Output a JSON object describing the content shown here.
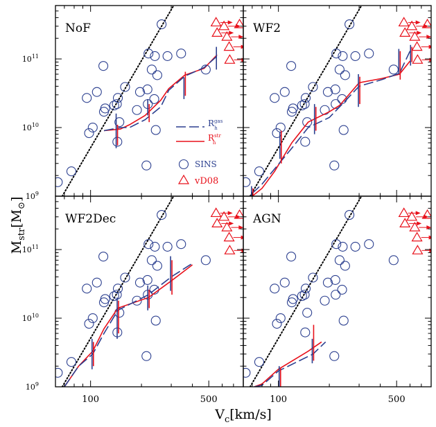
{
  "figure": {
    "ylabel_main": "M",
    "ylabel_sub": "str",
    "ylabel_unit": "[M",
    "ylabel_unit_sub": "⊙",
    "ylabel_close": "]",
    "xlabel_main": "V",
    "xlabel_sub": "c",
    "xlabel_unit": "[km/s]",
    "xticks": [
      {
        "value": 100,
        "label": "100"
      },
      {
        "value": 500,
        "label": "500"
      }
    ],
    "yticks": [
      {
        "exp": 9,
        "label": "10",
        "sup": "9"
      },
      {
        "exp": 10,
        "label": "10",
        "sup": "10"
      },
      {
        "exp": 11,
        "label": "10",
        "sup": "11"
      }
    ],
    "legend": {
      "gas_label": "R",
      "gas_sub": "h",
      "gas_sup": "gas",
      "str_label": "R",
      "str_sub": "h",
      "str_sup": "str",
      "sins_label": "SINS",
      "vd08_label": "vD08"
    },
    "colors": {
      "blue": "#2b3f8f",
      "red": "#e8101a",
      "black": "#000000"
    }
  },
  "chart_data": [
    {
      "type": "scatter",
      "panel_label": "NoF",
      "xscale": "log",
      "yscale": "log",
      "xlim": [
        62,
        800
      ],
      "ylim": [
        1000000000.0,
        600000000000.0
      ],
      "sins": [
        [
          64,
          1600000000.0
        ],
        [
          77,
          2300000000.0
        ],
        [
          95,
          27000000000.0
        ],
        [
          98,
          8300000000.0
        ],
        [
          103,
          10000000000.0
        ],
        [
          109,
          33000000000.0
        ],
        [
          119,
          79000000000.0
        ],
        [
          120,
          17000000000.0
        ],
        [
          122,
          19000000000.0
        ],
        [
          138,
          21000000000.0
        ],
        [
          143,
          22000000000.0
        ],
        [
          144,
          6200000000.0
        ],
        [
          145,
          27000000000.0
        ],
        [
          148,
          12000000000.0
        ],
        [
          160,
          39000000000.0
        ],
        [
          188,
          18000000000.0
        ],
        [
          196,
          33000000000.0
        ],
        [
          214,
          2800000000.0
        ],
        [
          217,
          36000000000.0
        ],
        [
          218,
          22000000000.0
        ],
        [
          220,
          120000000000.0
        ],
        [
          230,
          70000000000.0
        ],
        [
          238,
          26000000000.0
        ],
        [
          240,
          110000000000.0
        ],
        [
          243,
          9200000000.0
        ],
        [
          248,
          58000000000.0
        ],
        [
          263,
          320000000000.0
        ],
        [
          285,
          110000000000.0
        ],
        [
          343,
          120000000000.0
        ],
        [
          480,
          70000000000.0
        ]
      ],
      "vd08": [
        [
          552,
          340000000000.0
        ],
        [
          560,
          240000000000.0
        ],
        [
          615,
          300000000000.0
        ],
        [
          640,
          210000000000.0
        ],
        [
          660,
          150000000000.0
        ],
        [
          665,
          97000000000.0
        ],
        [
          760,
          320000000000.0
        ]
      ],
      "gas_curve": [
        [
          120,
          9000000000.0
        ],
        [
          150,
          10000000000.0
        ],
        [
          170,
          10000000000.0
        ],
        [
          210,
          13000000000.0
        ],
        [
          260,
          20000000000.0
        ],
        [
          290,
          35000000000.0
        ],
        [
          360,
          56000000000.0
        ],
        [
          470,
          75000000000.0
        ],
        [
          560,
          110000000000.0
        ]
      ],
      "str_curve": [
        [
          120,
          9000000000.0
        ],
        [
          150,
          9500000000.0
        ],
        [
          170,
          11000000000.0
        ],
        [
          210,
          15000000000.0
        ],
        [
          260,
          25000000000.0
        ],
        [
          290,
          37000000000.0
        ],
        [
          360,
          58000000000.0
        ],
        [
          470,
          73000000000.0
        ],
        [
          560,
          115000000000.0
        ]
      ],
      "gas_errbars": [
        [
          143,
          5000000000.0,
          16000000000.0
        ],
        [
          220,
          15000000000.0,
          26000000000.0
        ],
        [
          360,
          26000000000.0,
          54000000000.0
        ],
        [
          560,
          70000000000.0,
          150000000000.0
        ]
      ],
      "str_errbars": [
        [
          143,
          5500000000.0,
          11000000000.0
        ],
        [
          220,
          12000000000.0,
          22000000000.0
        ],
        [
          360,
          29000000000.0,
          65000000000.0
        ]
      ]
    },
    {
      "type": "scatter",
      "panel_label": "WF2",
      "xscale": "log",
      "yscale": "log",
      "xlim": [
        62,
        800
      ],
      "ylim": [
        1000000000.0,
        600000000000.0
      ],
      "sins": [
        [
          64,
          1600000000.0
        ],
        [
          77,
          2300000000.0
        ],
        [
          95,
          27000000000.0
        ],
        [
          98,
          8300000000.0
        ],
        [
          103,
          10000000000.0
        ],
        [
          109,
          33000000000.0
        ],
        [
          119,
          79000000000.0
        ],
        [
          120,
          17000000000.0
        ],
        [
          122,
          19000000000.0
        ],
        [
          138,
          21000000000.0
        ],
        [
          143,
          22000000000.0
        ],
        [
          144,
          6200000000.0
        ],
        [
          145,
          27000000000.0
        ],
        [
          148,
          12000000000.0
        ],
        [
          160,
          39000000000.0
        ],
        [
          188,
          18000000000.0
        ],
        [
          196,
          33000000000.0
        ],
        [
          214,
          2800000000.0
        ],
        [
          217,
          36000000000.0
        ],
        [
          218,
          22000000000.0
        ],
        [
          220,
          120000000000.0
        ],
        [
          230,
          70000000000.0
        ],
        [
          238,
          26000000000.0
        ],
        [
          240,
          110000000000.0
        ],
        [
          243,
          9200000000.0
        ],
        [
          248,
          58000000000.0
        ],
        [
          263,
          320000000000.0
        ],
        [
          285,
          110000000000.0
        ],
        [
          343,
          120000000000.0
        ],
        [
          480,
          70000000000.0
        ]
      ],
      "vd08": [
        [
          552,
          340000000000.0
        ],
        [
          560,
          240000000000.0
        ],
        [
          615,
          300000000000.0
        ],
        [
          640,
          210000000000.0
        ],
        [
          660,
          150000000000.0
        ],
        [
          665,
          97000000000.0
        ],
        [
          760,
          320000000000.0
        ]
      ],
      "gas_curve": [
        [
          70,
          1100000000.0
        ],
        [
          80,
          1500000000.0
        ],
        [
          95,
          2500000000.0
        ],
        [
          120,
          5000000000.0
        ],
        [
          150,
          10000000000.0
        ],
        [
          200,
          14000000000.0
        ],
        [
          230,
          20000000000.0
        ],
        [
          300,
          40000000000.0
        ],
        [
          410,
          50000000000.0
        ],
        [
          520,
          62000000000.0
        ],
        [
          600,
          130000000000.0
        ]
      ],
      "str_curve": [
        [
          70,
          1000000000.0
        ],
        [
          80,
          1300000000.0
        ],
        [
          95,
          2300000000.0
        ],
        [
          120,
          6000000000.0
        ],
        [
          150,
          12000000000.0
        ],
        [
          200,
          17000000000.0
        ],
        [
          230,
          21000000000.0
        ],
        [
          300,
          45000000000.0
        ],
        [
          410,
          52000000000.0
        ],
        [
          520,
          60000000000.0
        ],
        [
          600,
          93000000000.0
        ]
      ],
      "gas_errbars": [
        [
          70,
          600000000.0,
          1400000000.0
        ],
        [
          103,
          3500000000.0,
          8500000000.0
        ],
        [
          165,
          8000000000.0,
          22000000000.0
        ],
        [
          300,
          20000000000.0,
          60000000000.0
        ],
        [
          520,
          60000000000.0,
          140000000000.0
        ],
        [
          610,
          80000000000.0,
          160000000000.0
        ]
      ],
      "str_errbars": [
        [
          70,
          700000000.0,
          1300000000.0
        ],
        [
          103,
          3000000000.0,
          9000000000.0
        ],
        [
          165,
          9000000000.0,
          20000000000.0
        ],
        [
          300,
          22000000000.0,
          55000000000.0
        ],
        [
          520,
          50000000000.0,
          130000000000.0
        ],
        [
          610,
          90000000000.0,
          150000000000.0
        ]
      ]
    },
    {
      "type": "scatter",
      "panel_label": "WF2Dec",
      "xscale": "log",
      "yscale": "log",
      "xlim": [
        62,
        800
      ],
      "ylim": [
        1000000000.0,
        600000000000.0
      ],
      "sins": [
        [
          64,
          1600000000.0
        ],
        [
          77,
          2300000000.0
        ],
        [
          95,
          27000000000.0
        ],
        [
          98,
          8300000000.0
        ],
        [
          103,
          10000000000.0
        ],
        [
          109,
          33000000000.0
        ],
        [
          119,
          79000000000.0
        ],
        [
          120,
          17000000000.0
        ],
        [
          122,
          19000000000.0
        ],
        [
          138,
          21000000000.0
        ],
        [
          143,
          22000000000.0
        ],
        [
          144,
          6200000000.0
        ],
        [
          145,
          27000000000.0
        ],
        [
          148,
          12000000000.0
        ],
        [
          160,
          39000000000.0
        ],
        [
          188,
          18000000000.0
        ],
        [
          196,
          33000000000.0
        ],
        [
          214,
          2800000000.0
        ],
        [
          217,
          36000000000.0
        ],
        [
          218,
          22000000000.0
        ],
        [
          220,
          120000000000.0
        ],
        [
          230,
          70000000000.0
        ],
        [
          238,
          26000000000.0
        ],
        [
          240,
          110000000000.0
        ],
        [
          243,
          9200000000.0
        ],
        [
          248,
          58000000000.0
        ],
        [
          263,
          320000000000.0
        ],
        [
          285,
          110000000000.0
        ],
        [
          343,
          120000000000.0
        ],
        [
          480,
          70000000000.0
        ]
      ],
      "vd08": [
        [
          552,
          340000000000.0
        ],
        [
          560,
          240000000000.0
        ],
        [
          615,
          300000000000.0
        ],
        [
          640,
          210000000000.0
        ],
        [
          660,
          150000000000.0
        ],
        [
          665,
          97000000000.0
        ],
        [
          760,
          320000000000.0
        ]
      ],
      "gas_curve": [
        [
          70,
          1000000000.0
        ],
        [
          85,
          2000000000.0
        ],
        [
          103,
          3000000000.0
        ],
        [
          120,
          6000000000.0
        ],
        [
          145,
          13000000000.0
        ],
        [
          220,
          22000000000.0
        ],
        [
          300,
          40000000000.0
        ],
        [
          400,
          63000000000.0
        ]
      ],
      "str_curve": [
        [
          70,
          1000000000.0
        ],
        [
          85,
          2000000000.0
        ],
        [
          103,
          3300000000.0
        ],
        [
          120,
          7000000000.0
        ],
        [
          145,
          14000000000.0
        ],
        [
          220,
          20000000000.0
        ],
        [
          300,
          35000000000.0
        ],
        [
          400,
          60000000000.0
        ]
      ],
      "gas_errbars": [
        [
          103,
          1800000000.0,
          5000000000.0
        ],
        [
          145,
          5000000000.0,
          20000000000.0
        ],
        [
          220,
          13000000000.0,
          30000000000.0
        ],
        [
          300,
          25000000000.0,
          80000000000.0
        ]
      ],
      "str_errbars": [
        [
          103,
          2000000000.0,
          4500000000.0
        ],
        [
          145,
          6000000000.0,
          18000000000.0
        ],
        [
          220,
          14000000000.0,
          26000000000.0
        ],
        [
          300,
          22000000000.0,
          70000000000.0
        ]
      ]
    },
    {
      "type": "scatter",
      "panel_label": "AGN",
      "xscale": "log",
      "yscale": "log",
      "xlim": [
        62,
        800
      ],
      "ylim": [
        1000000000.0,
        600000000000.0
      ],
      "sins": [
        [
          64,
          1600000000.0
        ],
        [
          77,
          2300000000.0
        ],
        [
          95,
          27000000000.0
        ],
        [
          98,
          8300000000.0
        ],
        [
          103,
          10000000000.0
        ],
        [
          109,
          33000000000.0
        ],
        [
          119,
          79000000000.0
        ],
        [
          120,
          17000000000.0
        ],
        [
          122,
          19000000000.0
        ],
        [
          138,
          21000000000.0
        ],
        [
          143,
          22000000000.0
        ],
        [
          144,
          6200000000.0
        ],
        [
          145,
          27000000000.0
        ],
        [
          148,
          12000000000.0
        ],
        [
          160,
          39000000000.0
        ],
        [
          188,
          18000000000.0
        ],
        [
          196,
          33000000000.0
        ],
        [
          214,
          2800000000.0
        ],
        [
          217,
          36000000000.0
        ],
        [
          218,
          22000000000.0
        ],
        [
          220,
          120000000000.0
        ],
        [
          230,
          70000000000.0
        ],
        [
          238,
          26000000000.0
        ],
        [
          240,
          110000000000.0
        ],
        [
          243,
          9200000000.0
        ],
        [
          248,
          58000000000.0
        ],
        [
          263,
          320000000000.0
        ],
        [
          285,
          110000000000.0
        ],
        [
          343,
          120000000000.0
        ],
        [
          480,
          70000000000.0
        ]
      ],
      "vd08": [
        [
          552,
          340000000000.0
        ],
        [
          560,
          240000000000.0
        ],
        [
          615,
          300000000000.0
        ],
        [
          640,
          210000000000.0
        ],
        [
          660,
          150000000000.0
        ],
        [
          665,
          97000000000.0
        ],
        [
          760,
          320000000000.0
        ]
      ],
      "gas_curve": [
        [
          72,
          1000000000.0
        ],
        [
          80,
          1050000000.0
        ],
        [
          100,
          1700000000.0
        ],
        [
          160,
          3000000000.0
        ],
        [
          190,
          4500000000.0
        ]
      ],
      "str_curve": [
        [
          72,
          1000000000.0
        ],
        [
          80,
          1100000000.0
        ],
        [
          100,
          1800000000.0
        ],
        [
          150,
          3300000000.0
        ],
        [
          180,
          4500000000.0
        ]
      ],
      "gas_errbars": [
        [
          102,
          1000000000.0,
          2000000000.0
        ],
        [
          160,
          2200000000.0,
          5000000000.0
        ]
      ],
      "str_errbars": [
        [
          102,
          1000000000.0,
          1900000000.0
        ],
        [
          160,
          2400000000.0,
          8000000000.0
        ]
      ]
    }
  ]
}
